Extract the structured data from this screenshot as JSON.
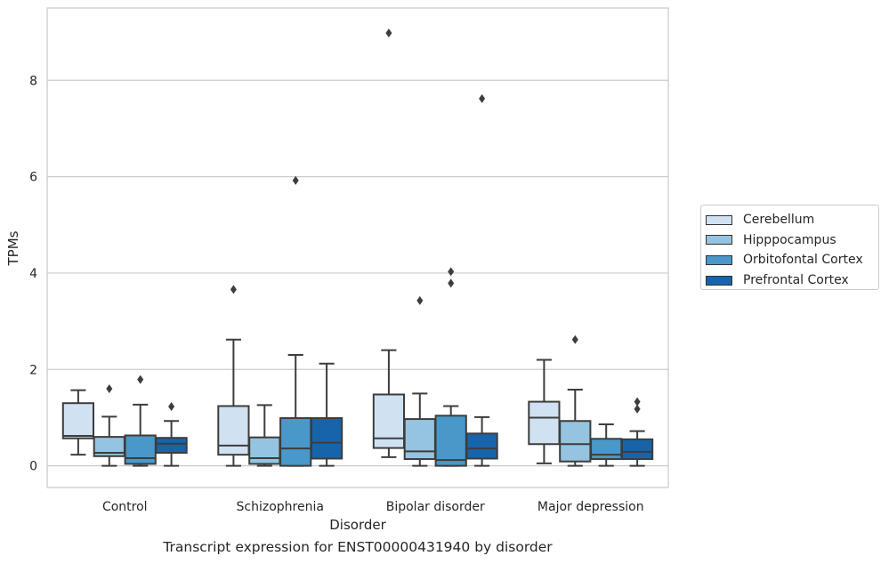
{
  "chart_data": {
    "type": "box",
    "xlabel": "Disorder",
    "ylabel": "TPMs",
    "caption": "Transcript expression for ENST00000431940 by disorder",
    "ylim": [
      -0.45,
      9.5
    ],
    "yticks": [
      0,
      2,
      4,
      6,
      8
    ],
    "grid": true,
    "legend_position": "right",
    "categories": [
      "Control",
      "Schizophrenia",
      "Bipolar disorder",
      "Major depression"
    ],
    "series": [
      {
        "name": "Cerebellum",
        "color": "#d0e1f2",
        "boxes": [
          {
            "whislo": 0.23,
            "q1": 0.57,
            "med": 0.62,
            "q3": 1.3,
            "whishi": 1.57,
            "fliers": []
          },
          {
            "whislo": 0.0,
            "q1": 0.23,
            "med": 0.42,
            "q3": 1.24,
            "whishi": 2.62,
            "fliers": [
              3.66
            ]
          },
          {
            "whislo": 0.18,
            "q1": 0.37,
            "med": 0.57,
            "q3": 1.48,
            "whishi": 2.4,
            "fliers": [
              8.98
            ]
          },
          {
            "whislo": 0.05,
            "q1": 0.45,
            "med": 1.0,
            "q3": 1.33,
            "whishi": 2.2,
            "fliers": []
          }
        ]
      },
      {
        "name": "Hipppocampus",
        "color": "#94c4df",
        "boxes": [
          {
            "whislo": 0.0,
            "q1": 0.2,
            "med": 0.27,
            "q3": 0.6,
            "whishi": 1.02,
            "fliers": [
              1.6
            ]
          },
          {
            "whislo": 0.0,
            "q1": 0.04,
            "med": 0.16,
            "q3": 0.59,
            "whishi": 1.26,
            "fliers": []
          },
          {
            "whislo": 0.0,
            "q1": 0.14,
            "med": 0.3,
            "q3": 0.97,
            "whishi": 1.5,
            "fliers": [
              3.43
            ]
          },
          {
            "whislo": 0.0,
            "q1": 0.09,
            "med": 0.45,
            "q3": 0.93,
            "whishi": 1.58,
            "fliers": [
              2.62
            ]
          }
        ]
      },
      {
        "name": "Orbitofontal Cortex",
        "color": "#4a98c9",
        "boxes": [
          {
            "whislo": 0.0,
            "q1": 0.04,
            "med": 0.16,
            "q3": 0.63,
            "whishi": 1.27,
            "fliers": [
              1.79
            ]
          },
          {
            "whislo": 0.0,
            "q1": 0.0,
            "med": 0.36,
            "q3": 0.99,
            "whishi": 2.3,
            "fliers": [
              5.92
            ]
          },
          {
            "whislo": 0.0,
            "q1": 0.0,
            "med": 0.12,
            "q3": 1.04,
            "whishi": 1.24,
            "fliers": [
              3.79,
              4.03
            ]
          },
          {
            "whislo": 0.0,
            "q1": 0.14,
            "med": 0.23,
            "q3": 0.56,
            "whishi": 0.86,
            "fliers": []
          }
        ]
      },
      {
        "name": "Prefrontal Cortex",
        "color": "#1764ab",
        "boxes": [
          {
            "whislo": 0.0,
            "q1": 0.27,
            "med": 0.46,
            "q3": 0.58,
            "whishi": 0.93,
            "fliers": [
              1.23
            ]
          },
          {
            "whislo": 0.0,
            "q1": 0.15,
            "med": 0.48,
            "q3": 0.99,
            "whishi": 2.12,
            "fliers": []
          },
          {
            "whislo": 0.0,
            "q1": 0.15,
            "med": 0.36,
            "q3": 0.67,
            "whishi": 1.01,
            "fliers": [
              7.62
            ]
          },
          {
            "whislo": 0.0,
            "q1": 0.14,
            "med": 0.29,
            "q3": 0.55,
            "whishi": 0.72,
            "fliers": [
              1.18,
              1.33
            ]
          }
        ]
      }
    ]
  }
}
